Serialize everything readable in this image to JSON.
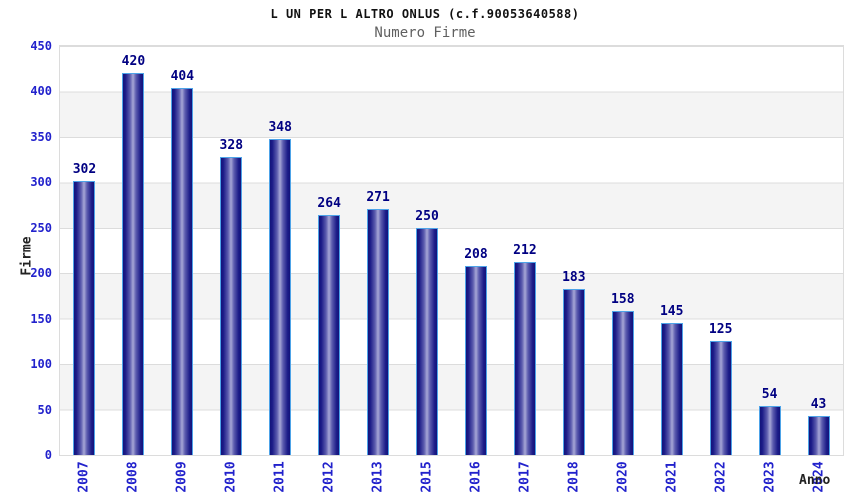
{
  "header": {
    "title": "L UN PER L ALTRO ONLUS (c.f.90053640588)"
  },
  "chart_data": {
    "type": "bar",
    "title": "Numero Firme",
    "xlabel": "Anno",
    "ylabel": "Firme",
    "categories": [
      "2007",
      "2008",
      "2009",
      "2010",
      "2011",
      "2012",
      "2013",
      "2015",
      "2016",
      "2017",
      "2018",
      "2020",
      "2021",
      "2022",
      "2023",
      "2024"
    ],
    "values": [
      302,
      420,
      404,
      328,
      348,
      264,
      271,
      250,
      208,
      212,
      183,
      158,
      145,
      125,
      54,
      43
    ],
    "ylim": [
      0,
      450
    ],
    "ytick_step": 50,
    "grid": true,
    "legend": "none",
    "colors": {
      "bar_dark": "#13137a",
      "bar_light": "#a6a6d6",
      "bar_border": "#4da3e8",
      "tick_label": "#2222cc",
      "value_label": "#000082",
      "band_gray": "#f4f4f4",
      "grid_line": "#dcdcdc"
    }
  }
}
